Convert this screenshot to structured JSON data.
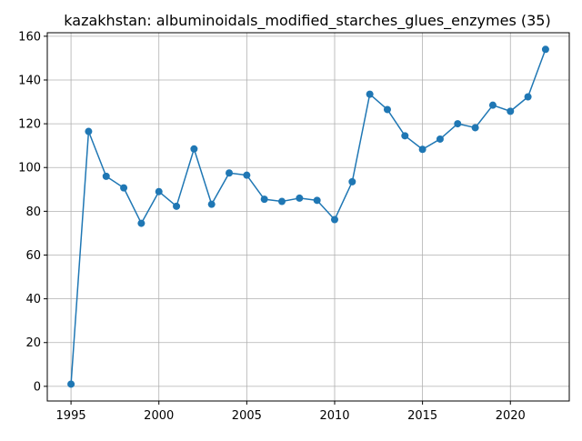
{
  "chart_data": {
    "type": "line",
    "title": "kazakhstan: albuminoidals_modified_starches_glues_enzymes (35)",
    "xlabel": "",
    "ylabel": "",
    "xlim": [
      1993.65,
      2023.35
    ],
    "ylim": [
      -6.7,
      161.6
    ],
    "xticks": [
      1995,
      2000,
      2005,
      2010,
      2015,
      2020
    ],
    "yticks": [
      0,
      20,
      40,
      60,
      80,
      100,
      120,
      140,
      160
    ],
    "grid": true,
    "marker": "circle",
    "color": "#1f77b4",
    "x": [
      1995,
      1996,
      1997,
      1998,
      1999,
      2000,
      2001,
      2002,
      2003,
      2004,
      2005,
      2006,
      2007,
      2008,
      2009,
      2010,
      2011,
      2012,
      2013,
      2014,
      2015,
      2016,
      2017,
      2018,
      2019,
      2020,
      2021,
      2022
    ],
    "values": [
      1,
      116.5,
      96,
      90.7,
      74.5,
      89,
      82.3,
      108.5,
      83.2,
      97.5,
      96.5,
      85.5,
      84.5,
      86,
      85,
      76.2,
      93.5,
      133.5,
      126.5,
      114.5,
      108.3,
      113,
      120,
      118.2,
      128.5,
      125.7,
      132.3,
      154
    ]
  }
}
